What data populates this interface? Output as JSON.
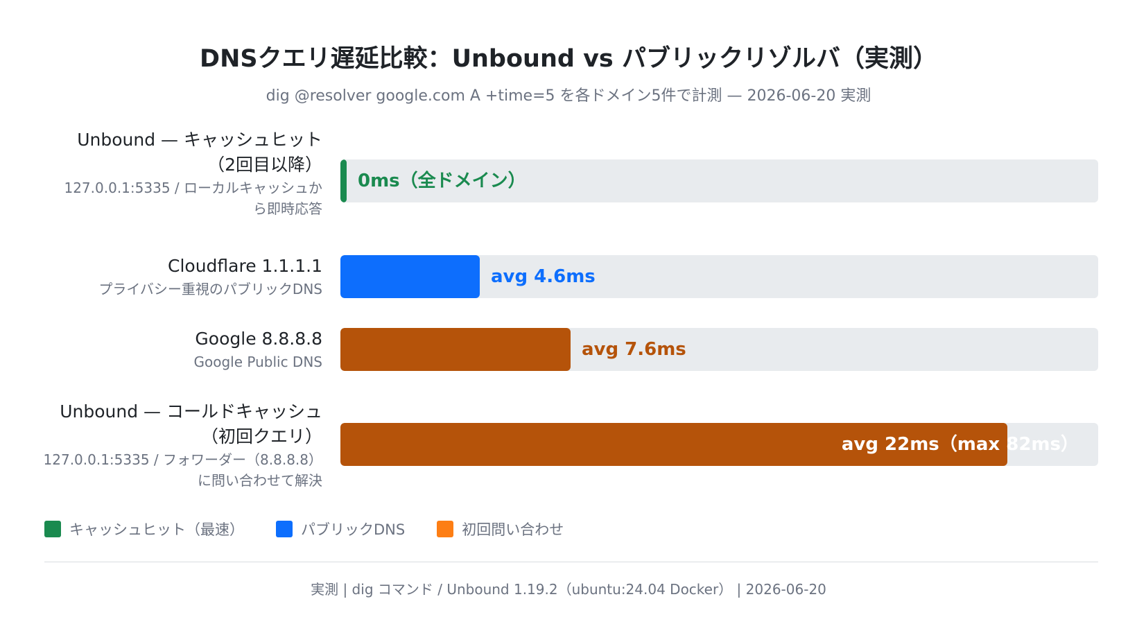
{
  "chart_data": {
    "type": "bar",
    "orientation": "horizontal",
    "title": "DNSクエリ遅延比較：Unbound vs パブリックリゾルバ（実測）",
    "subtitle": "dig @resolver google.com A +time=5 を各ドメイン5件で計測 — 2026-06-20 実測",
    "unit": "ms",
    "xlim": [
      0,
      25
    ],
    "categories": [
      "Unbound — キャッシュヒット（2回目以降）",
      "Cloudflare 1.1.1.1",
      "Google 8.8.8.8",
      "Unbound — コールドキャッシュ（初回クエリ）"
    ],
    "values": [
      0,
      4.6,
      7.6,
      22
    ],
    "rows": [
      {
        "name_lines": [
          "Unbound — キャッシュヒット",
          "（2回目以降）"
        ],
        "desc_lines": [
          "127.0.0.1:5335 / ローカルキャッシュか",
          "ら即時応答"
        ],
        "value": 0,
        "value_label": "0ms（全ドメイン）",
        "color": "#1a8a4f",
        "label_color": "#1a8a4f"
      },
      {
        "name_lines": [
          "Cloudflare 1.1.1.1"
        ],
        "desc_lines": [
          "プライバシー重視のパブリックDNS"
        ],
        "value": 4.6,
        "value_label": "avg 4.6ms",
        "color": "#0d6efd",
        "label_color": "#0d6efd"
      },
      {
        "name_lines": [
          "Google 8.8.8.8"
        ],
        "desc_lines": [
          "Google Public DNS"
        ],
        "value": 7.6,
        "value_label": "avg 7.6ms",
        "color": "#b5530a",
        "label_color": "#b5530a"
      },
      {
        "name_lines": [
          "Unbound — コールドキャッシュ",
          "（初回クエリ）"
        ],
        "desc_lines": [
          "127.0.0.1:5335 / フォワーダー（8.8.8.8）",
          "に問い合わせて解決"
        ],
        "value": 22,
        "max_value": 82,
        "value_label": "avg 22ms（max 82ms）",
        "color": "#b5530a",
        "label_color": "#ffffff"
      }
    ],
    "legend": [
      {
        "label": "キャッシュヒット（最速）",
        "color": "#1a8a4f"
      },
      {
        "label": "パブリックDNS",
        "color": "#0d6efd"
      },
      {
        "label": "初回問い合わせ",
        "color": "#fd7e14"
      }
    ],
    "legend_position": "bottom-left"
  },
  "footer": "実測 | dig コマンド / Unbound 1.19.2（ubuntu:24.04 Docker） | 2026-06-20"
}
